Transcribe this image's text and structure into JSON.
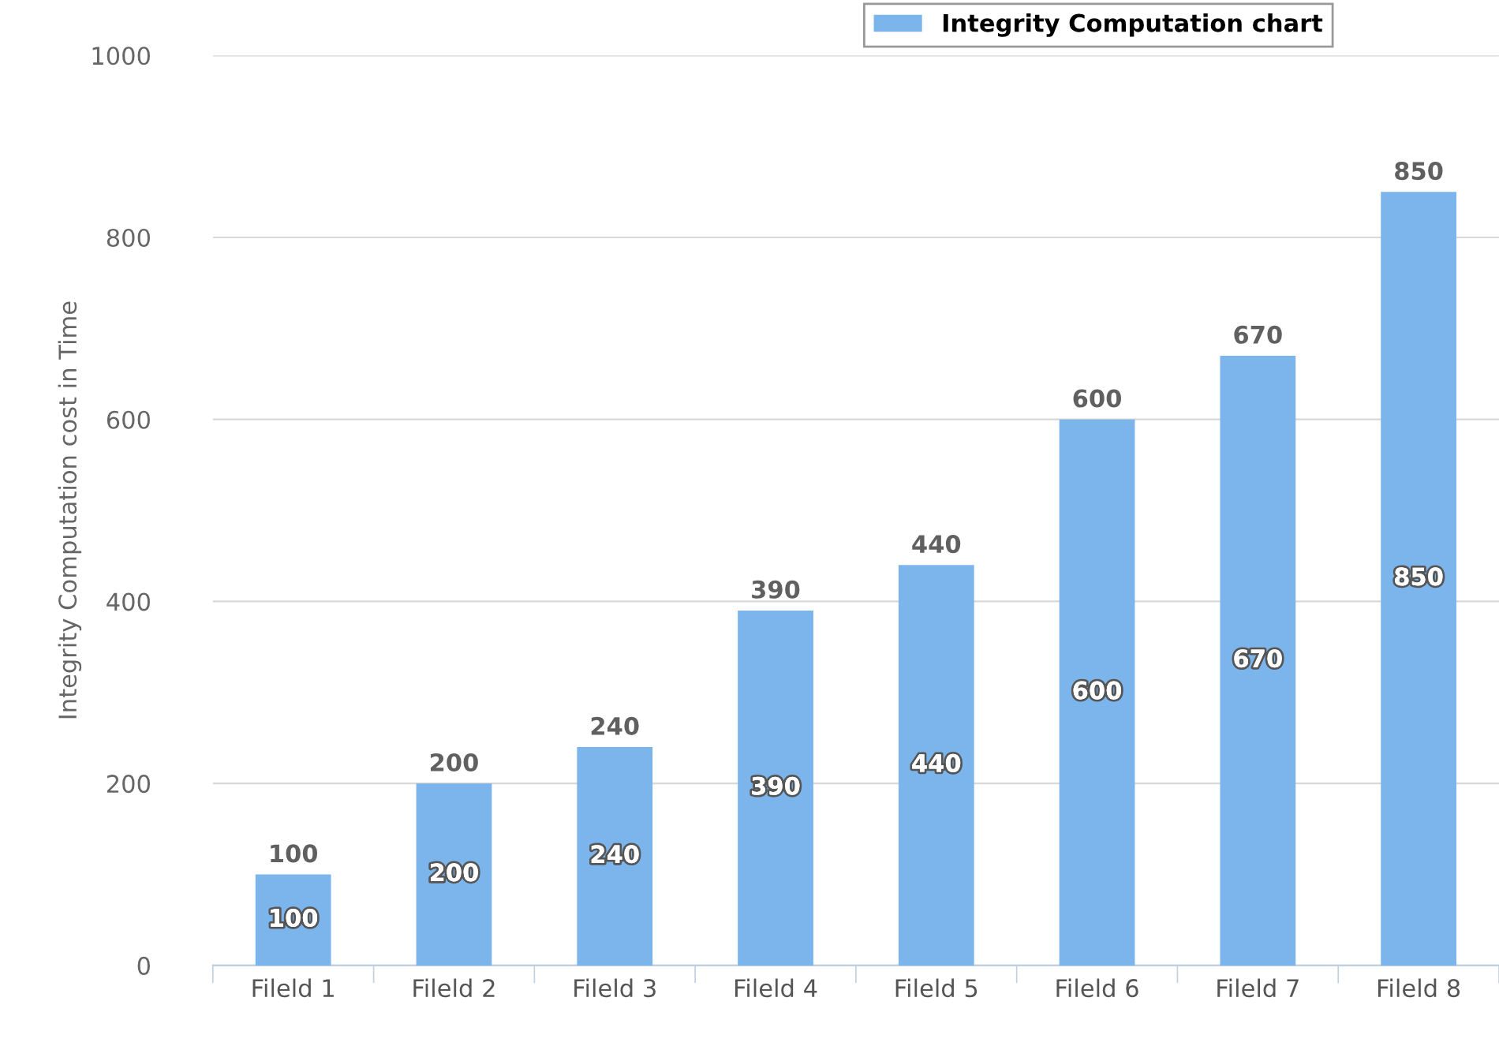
{
  "chart_data": {
    "type": "bar",
    "ylabel": "Integrity Computation cost in Time",
    "categories": [
      "Fileld 1",
      "Fileld 2",
      "Fileld 3",
      "Fileld 4",
      "Fileld 5",
      "Fileld 6",
      "Fileld 7",
      "Fileld 8"
    ],
    "series": [
      {
        "name": "Integrity Computation chart",
        "color": "#7cb5ec",
        "values": [
          100,
          200,
          240,
          390,
          440,
          600,
          670,
          850
        ]
      }
    ],
    "ylim": [
      0,
      1000
    ],
    "yticks": [
      0,
      200,
      400,
      600,
      800,
      1000
    ],
    "grid": "y",
    "legend": "top right",
    "data_labels": true,
    "annotations": [
      "100",
      "200",
      "240",
      "390",
      "440",
      "600",
      "670",
      "850"
    ]
  }
}
